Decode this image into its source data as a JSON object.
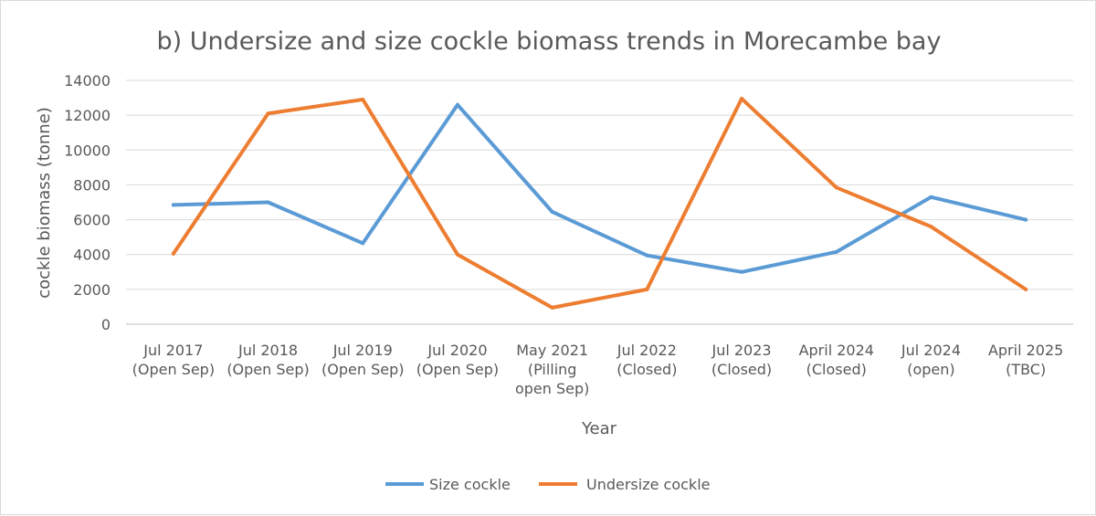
{
  "chart_data": {
    "type": "line",
    "title": "b) Undersize and size cockle biomass trends in Morecambe bay",
    "xlabel": "Year",
    "ylabel": "cockle biomass (tonne)",
    "ylim": [
      0,
      14000
    ],
    "yticks": [
      0,
      2000,
      4000,
      6000,
      8000,
      10000,
      12000,
      14000
    ],
    "grid": true,
    "legend_position": "bottom",
    "categories": [
      [
        "Jul 2017",
        "(Open Sep)"
      ],
      [
        "Jul 2018",
        "(Open Sep)"
      ],
      [
        "Jul 2019",
        "(Open Sep)"
      ],
      [
        "Jul 2020",
        "(Open Sep)"
      ],
      [
        "May 2021",
        "(Pilling",
        "open Sep)"
      ],
      [
        "Jul 2022",
        "(Closed)"
      ],
      [
        "Jul 2023",
        "(Closed)"
      ],
      [
        "April 2024",
        "(Closed)"
      ],
      [
        "Jul 2024",
        "(open)"
      ],
      [
        "April 2025",
        "(TBC)"
      ]
    ],
    "series": [
      {
        "name": "Size cockle",
        "color": "#5b9bd5",
        "values": [
          6850,
          7000,
          4650,
          12600,
          6450,
          3950,
          3000,
          4150,
          7300,
          6000
        ]
      },
      {
        "name": "Undersize cockle",
        "color": "#ed7d31",
        "values": [
          4050,
          12100,
          12900,
          4000,
          950,
          2000,
          12950,
          7850,
          5600,
          2000
        ]
      }
    ]
  }
}
